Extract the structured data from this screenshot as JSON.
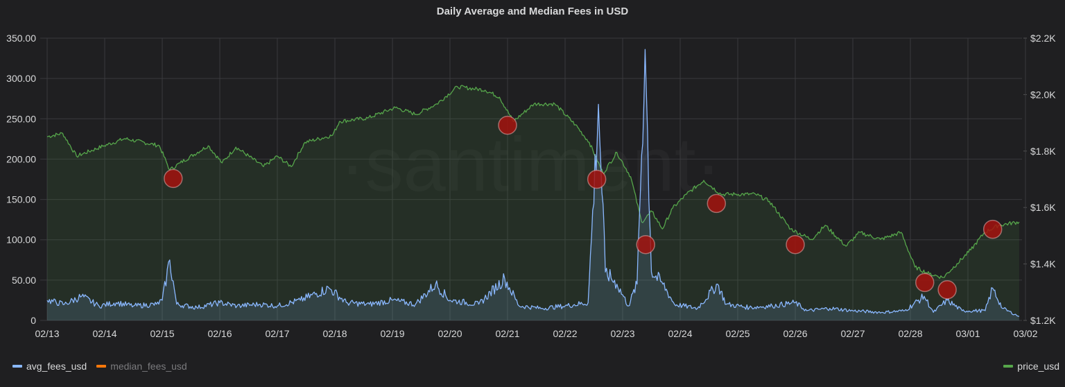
{
  "chart_data": {
    "type": "line",
    "title": "Daily Average and Median Fees in USD",
    "watermark": "·santiment·",
    "x_ticks": [
      "02/13",
      "02/14",
      "02/15",
      "02/16",
      "02/17",
      "02/18",
      "02/19",
      "02/20",
      "02/21",
      "02/22",
      "02/23",
      "02/24",
      "02/25",
      "02/26",
      "02/27",
      "02/28",
      "03/01",
      "03/02"
    ],
    "x_unit": "days since 02/13",
    "x_range": [
      -0.12,
      17.0
    ],
    "y_left": {
      "ticks": [
        "0",
        "50.00",
        "100.00",
        "150.00",
        "200.00",
        "250.00",
        "300.00",
        "350.00"
      ],
      "range": [
        0,
        350
      ]
    },
    "y_right": {
      "ticks": [
        "$1.2K",
        "$1.4K",
        "$1.6K",
        "$1.8K",
        "$2.0K",
        "$2.2K"
      ],
      "range": [
        1200,
        2200
      ]
    },
    "grid": true,
    "series": [
      {
        "name": "avg_fees_usd",
        "axis": "left",
        "color": "#8ab8ff",
        "points": [
          [
            0,
            25
          ],
          [
            0.3,
            20
          ],
          [
            0.6,
            30
          ],
          [
            0.9,
            18
          ],
          [
            1.2,
            22
          ],
          [
            1.5,
            18
          ],
          [
            1.9,
            20
          ],
          [
            2.0,
            25
          ],
          [
            2.13,
            75
          ],
          [
            2.25,
            20
          ],
          [
            2.6,
            16
          ],
          [
            3.0,
            22
          ],
          [
            3.3,
            18
          ],
          [
            3.7,
            20
          ],
          [
            4.0,
            18
          ],
          [
            4.4,
            25
          ],
          [
            4.9,
            40
          ],
          [
            5.2,
            22
          ],
          [
            5.6,
            20
          ],
          [
            6.0,
            25
          ],
          [
            6.4,
            20
          ],
          [
            6.75,
            45
          ],
          [
            7.0,
            25
          ],
          [
            7.5,
            20
          ],
          [
            7.95,
            52
          ],
          [
            8.2,
            18
          ],
          [
            8.6,
            15
          ],
          [
            9.0,
            18
          ],
          [
            9.4,
            22
          ],
          [
            9.58,
            268
          ],
          [
            9.7,
            60
          ],
          [
            9.9,
            45
          ],
          [
            10.1,
            18
          ],
          [
            10.25,
            45
          ],
          [
            10.39,
            336
          ],
          [
            10.5,
            60
          ],
          [
            10.7,
            45
          ],
          [
            10.9,
            20
          ],
          [
            11.3,
            15
          ],
          [
            11.65,
            45
          ],
          [
            11.8,
            20
          ],
          [
            12.2,
            16
          ],
          [
            12.6,
            18
          ],
          [
            13.0,
            22
          ],
          [
            13.2,
            12
          ],
          [
            13.6,
            15
          ],
          [
            14.0,
            12
          ],
          [
            14.5,
            10
          ],
          [
            14.9,
            12
          ],
          [
            15.24,
            30
          ],
          [
            15.4,
            10
          ],
          [
            15.64,
            25
          ],
          [
            15.9,
            12
          ],
          [
            16.3,
            12
          ],
          [
            16.43,
            40
          ],
          [
            16.6,
            15
          ],
          [
            16.89,
            5
          ]
        ]
      },
      {
        "name": "median_fees_usd",
        "axis": "left",
        "color": "#ff780a",
        "points": []
      },
      {
        "name": "price_usd",
        "axis": "right",
        "color": "#56a64b",
        "points": [
          [
            0,
            1851
          ],
          [
            0.27,
            1863
          ],
          [
            0.51,
            1782
          ],
          [
            0.99,
            1819
          ],
          [
            1.35,
            1844
          ],
          [
            1.95,
            1819
          ],
          [
            2.13,
            1733
          ],
          [
            2.31,
            1758
          ],
          [
            2.8,
            1819
          ],
          [
            3.04,
            1758
          ],
          [
            3.28,
            1814
          ],
          [
            3.76,
            1745
          ],
          [
            4.0,
            1782
          ],
          [
            4.24,
            1745
          ],
          [
            4.48,
            1831
          ],
          [
            4.96,
            1856
          ],
          [
            5.08,
            1905
          ],
          [
            5.57,
            1917
          ],
          [
            6.05,
            1954
          ],
          [
            6.41,
            1930
          ],
          [
            6.77,
            1967
          ],
          [
            7.13,
            2028
          ],
          [
            7.61,
            2016
          ],
          [
            7.86,
            1991
          ],
          [
            8.1,
            1905
          ],
          [
            8.46,
            1967
          ],
          [
            8.82,
            1967
          ],
          [
            9.18,
            1893
          ],
          [
            9.42,
            1831
          ],
          [
            9.66,
            1721
          ],
          [
            9.9,
            1795
          ],
          [
            10.14,
            1709
          ],
          [
            10.33,
            1549
          ],
          [
            10.51,
            1586
          ],
          [
            10.69,
            1524
          ],
          [
            10.87,
            1598
          ],
          [
            11.11,
            1647
          ],
          [
            11.41,
            1696
          ],
          [
            11.71,
            1647
          ],
          [
            11.95,
            1647
          ],
          [
            12.31,
            1647
          ],
          [
            12.55,
            1622
          ],
          [
            12.92,
            1524
          ],
          [
            13.28,
            1487
          ],
          [
            13.52,
            1537
          ],
          [
            13.88,
            1463
          ],
          [
            14.12,
            1512
          ],
          [
            14.48,
            1487
          ],
          [
            14.84,
            1512
          ],
          [
            15.08,
            1389
          ],
          [
            15.33,
            1365
          ],
          [
            15.57,
            1352
          ],
          [
            15.81,
            1401
          ],
          [
            16.05,
            1450
          ],
          [
            16.29,
            1512
          ],
          [
            16.53,
            1537
          ],
          [
            16.89,
            1549
          ]
        ]
      }
    ],
    "annotations": [
      [
        2.19,
        176
      ],
      [
        8.0,
        242
      ],
      [
        9.55,
        175
      ],
      [
        10.4,
        94
      ],
      [
        11.63,
        145
      ],
      [
        13.0,
        94
      ],
      [
        15.25,
        47
      ],
      [
        15.64,
        38
      ],
      [
        16.43,
        113
      ]
    ]
  },
  "legend": {
    "left": [
      "avg_fees_usd",
      "median_fees_usd"
    ],
    "right": [
      "price_usd"
    ]
  }
}
